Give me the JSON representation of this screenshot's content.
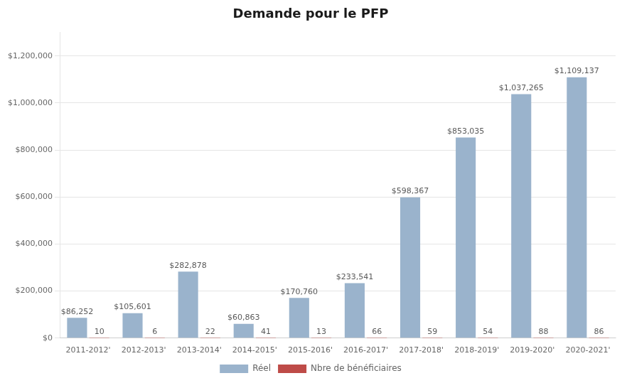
{
  "chart_data": {
    "type": "bar",
    "title": "Demande pour le PFP",
    "categories": [
      "2011-2012'",
      "2012-2013'",
      "2013-2014'",
      "2014-2015'",
      "2015-2016'",
      "2016-2017'",
      "2017-2018'",
      "2018-2019'",
      "2019-2020'",
      "2020-2021'"
    ],
    "series": [
      {
        "name": "Réel",
        "color": "#9ab3cc",
        "values": [
          86252,
          105601,
          282878,
          60863,
          170760,
          233541,
          598367,
          853035,
          1037265,
          1109137
        ],
        "value_labels": [
          "$86,252",
          "$105,601",
          "$282,878",
          "$60,863",
          "$170,760",
          "$233,541",
          "$598,367",
          "$853,035",
          "$1,037,265",
          "$1,109,137"
        ]
      },
      {
        "name": "Nbre de bénéficiaires",
        "color": "#be4b48",
        "values": [
          10,
          6,
          22,
          41,
          13,
          66,
          59,
          54,
          88,
          86
        ]
      }
    ],
    "ylim": [
      0,
      1300000
    ],
    "yticks": [
      {
        "value": 0,
        "label": "$0"
      },
      {
        "value": 200000,
        "label": "$200,000"
      },
      {
        "value": 400000,
        "label": "$400,000"
      },
      {
        "value": 600000,
        "label": "$600,000"
      },
      {
        "value": 800000,
        "label": "$800,000"
      },
      {
        "value": 1000000,
        "label": "$1,000,000"
      },
      {
        "value": 1200000,
        "label": "$1,200,000"
      }
    ],
    "grid": true,
    "legend": "bottom",
    "data_labels": true
  }
}
